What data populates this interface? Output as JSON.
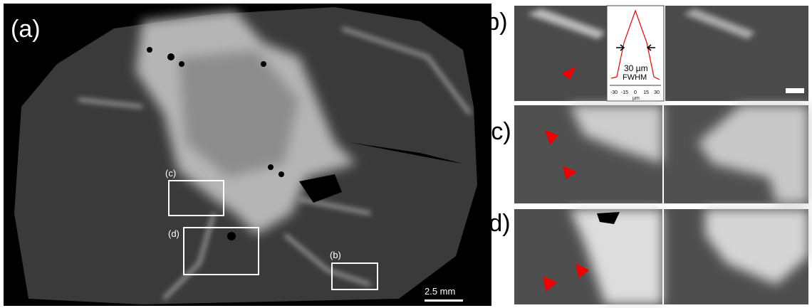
{
  "panels": {
    "a": {
      "label": "(a)",
      "boxes": [
        {
          "label": "(c)"
        },
        {
          "label": "(d)"
        },
        {
          "label": "(b)"
        }
      ],
      "scale_bar": "2.5 mm"
    },
    "b": {
      "label": "(b)",
      "inset": {
        "annotation": "30 µm",
        "sublabel": "FWHM",
        "xticks": [
          -30,
          -15,
          0,
          15,
          30
        ],
        "xlabel": "µm"
      }
    },
    "c": {
      "label": "(c)"
    },
    "d": {
      "label": "(d)"
    }
  }
}
